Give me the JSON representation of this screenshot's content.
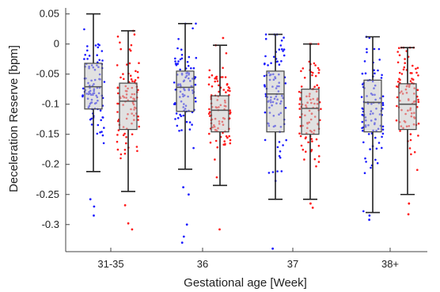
{
  "chart_data": {
    "type": "box",
    "xlabel": "Gestational age [Week]",
    "ylabel": "Deceleration Reserve [bpm]",
    "categories": [
      "31-35",
      "36",
      "37",
      "38+"
    ],
    "ylim": [
      -0.345,
      0.06
    ],
    "yticks": [
      0.05,
      0,
      -0.05,
      -0.1,
      -0.15,
      -0.2,
      -0.25,
      -0.3
    ],
    "ytick_labels": [
      "0.05",
      "0",
      "-0.05",
      "-0.1",
      "-0.15",
      "-0.2",
      "-0.25",
      "-0.3"
    ],
    "grid": false,
    "legend": null,
    "series": [
      {
        "color": "#1a1aff",
        "boxes": [
          {
            "category": "31-35",
            "whisker_low": -0.212,
            "q1": -0.108,
            "median": -0.071,
            "q3": -0.032,
            "whisker_high": 0.05,
            "outliers": [
              -0.258,
              -0.27,
              -0.285
            ]
          },
          {
            "category": "36",
            "whisker_low": -0.208,
            "q1": -0.112,
            "median": -0.072,
            "q3": -0.045,
            "whisker_high": 0.034,
            "outliers": [
              -0.238,
              -0.25,
              -0.3,
              -0.32,
              -0.33
            ]
          },
          {
            "category": "37",
            "whisker_low": -0.258,
            "q1": -0.146,
            "median": -0.083,
            "q3": -0.045,
            "whisker_high": 0.016,
            "outliers": [
              -0.34
            ]
          },
          {
            "category": "38+",
            "whisker_low": -0.28,
            "q1": -0.146,
            "median": -0.097,
            "q3": -0.06,
            "whisker_high": 0.012,
            "outliers": [
              -0.285,
              -0.292
            ]
          }
        ]
      },
      {
        "color": "#ff1a1a",
        "boxes": [
          {
            "category": "31-35",
            "whisker_low": -0.245,
            "q1": -0.142,
            "median": -0.095,
            "q3": -0.065,
            "whisker_high": 0.022,
            "outliers": [
              -0.268,
              -0.298,
              -0.308
            ]
          },
          {
            "category": "36",
            "whisker_low": -0.235,
            "q1": -0.146,
            "median": -0.11,
            "q3": -0.086,
            "whisker_high": -0.002,
            "outliers": [
              -0.308,
              0.01
            ]
          },
          {
            "category": "37",
            "whisker_low": -0.258,
            "q1": -0.15,
            "median": -0.107,
            "q3": -0.075,
            "whisker_high": 0.0,
            "outliers": [
              -0.265,
              -0.272
            ]
          },
          {
            "category": "38+",
            "whisker_low": -0.25,
            "q1": -0.142,
            "median": -0.1,
            "q3": -0.066,
            "whisker_high": -0.006,
            "outliers": [
              -0.265,
              -0.283
            ]
          }
        ]
      }
    ]
  }
}
